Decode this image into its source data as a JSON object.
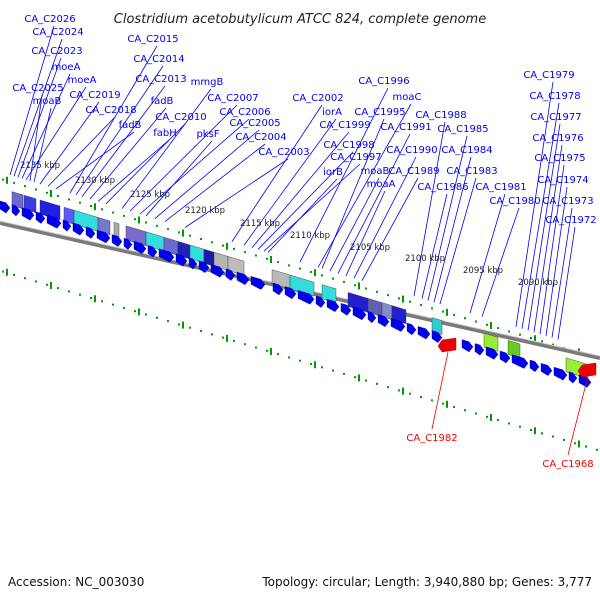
{
  "title": "Clostridium acetobutylicum ATCC 824, complete genome",
  "footer": {
    "accession": "Accession: NC_003030",
    "summary": "Topology: circular; Length: 3,940,880 bp; Genes: 3,777"
  },
  "colors": {
    "forward_gene": "#0000ee",
    "reverse_gene": "#ee0000",
    "dots": "#009900",
    "backbone": "#7a7a7a"
  },
  "scale_ticks": [
    "2135 kbp",
    "2130 kbp",
    "2125 kbp",
    "2120 kbp",
    "2115 kbp",
    "2110 kbp",
    "2105 kbp",
    "2100 kbp",
    "2095 kbp",
    "2090 kbp"
  ],
  "forward_labels": [
    "CA_C2026",
    "CA_C2024",
    "CA_C2023",
    "moeA",
    "moeA",
    "CA_C2025",
    "moaB",
    "CA_C2019",
    "CA_C2018",
    "fadB",
    "CA_C2015",
    "CA_C2014",
    "CA_C2013",
    "fadB",
    "fabH",
    "CA_C2010",
    "mmgB",
    "CA_C2007",
    "CA_C2006",
    "pksF",
    "CA_C2005",
    "CA_C2004",
    "CA_C2003",
    "CA_C2002",
    "iorA",
    "CA_C1999",
    "CA_C1998",
    "CA_C1997",
    "iorB",
    "CA_C1996",
    "moaC",
    "CA_C1995",
    "moaB",
    "CA_C1991",
    "moaA",
    "CA_C1990",
    "CA_C1989",
    "CA_C1988",
    "CA_C1986",
    "CA_C1985",
    "CA_C1984",
    "CA_C1983",
    "CA_C1981",
    "CA_C1980",
    "CA_C1979",
    "CA_C1978",
    "CA_C1977",
    "CA_C1976",
    "CA_C1975",
    "CA_C1974",
    "CA_C1973",
    "CA_C1972"
  ],
  "reverse_labels": [
    "CA_C1982",
    "CA_C1968"
  ]
}
